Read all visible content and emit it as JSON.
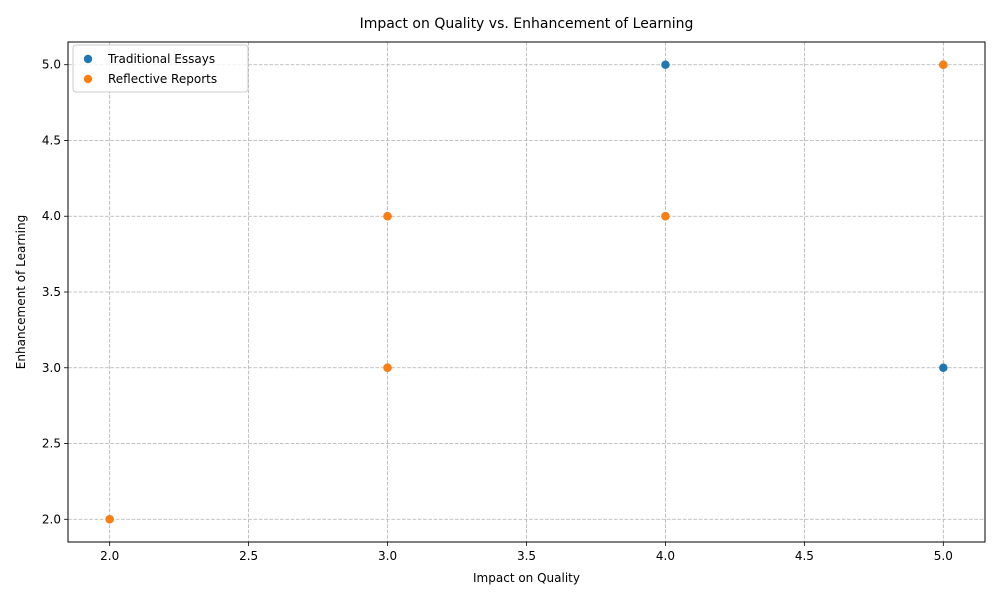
{
  "chart_data": {
    "type": "scatter",
    "title": "Impact on Quality vs. Enhancement of Learning",
    "xlabel": "Impact on Quality",
    "ylabel": "Enhancement of Learning",
    "xlim": [
      1.85,
      5.15
    ],
    "ylim": [
      1.85,
      5.15
    ],
    "xticks": [
      "2.0",
      "2.5",
      "3.0",
      "3.5",
      "4.0",
      "4.5",
      "5.0"
    ],
    "yticks": [
      "2.0",
      "2.5",
      "3.0",
      "3.5",
      "4.0",
      "4.5",
      "5.0"
    ],
    "grid": true,
    "grid_style": "dashed",
    "legend_position": "top-left",
    "series": [
      {
        "name": "Traditional Essays",
        "color": "#1f77b4",
        "points": [
          {
            "x": 4,
            "y": 5
          },
          {
            "x": 5,
            "y": 3
          },
          {
            "x": 3,
            "y": 4
          },
          {
            "x": 4,
            "y": 4
          },
          {
            "x": 3,
            "y": 3
          },
          {
            "x": 2,
            "y": 2
          },
          {
            "x": 5,
            "y": 5
          }
        ]
      },
      {
        "name": "Reflective Reports",
        "color": "#ff7f0e",
        "points": [
          {
            "x": 5,
            "y": 5
          },
          {
            "x": 3,
            "y": 4
          },
          {
            "x": 4,
            "y": 4
          },
          {
            "x": 3,
            "y": 3
          },
          {
            "x": 2,
            "y": 2
          }
        ]
      }
    ]
  }
}
